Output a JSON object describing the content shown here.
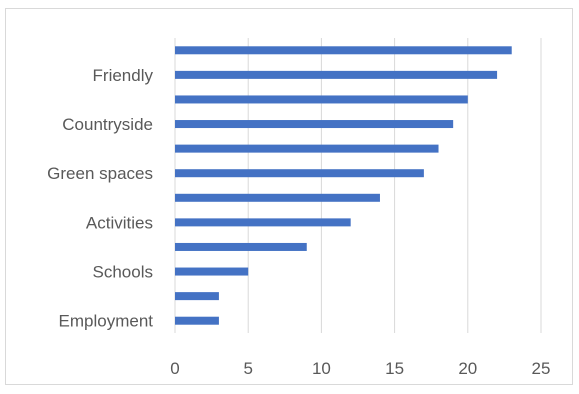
{
  "chart_data": {
    "type": "bar",
    "orientation": "horizontal",
    "categories": [
      "Employment",
      "",
      "Schools",
      "",
      "Activities",
      "",
      "Green spaces",
      "",
      "Countryside",
      "",
      "Friendly",
      ""
    ],
    "values": [
      3,
      3,
      5,
      9,
      12,
      14,
      17,
      18,
      19,
      20,
      22,
      23
    ],
    "x_ticks": [
      "0",
      "5",
      "10",
      "15",
      "20",
      "25"
    ],
    "xlim": [
      0,
      25
    ],
    "title": "",
    "xlabel": "",
    "ylabel": "",
    "grid": "vertical",
    "legend": "none",
    "bar_color": "#4472c4",
    "grid_color": "#d9d9d9",
    "text_color": "#595959"
  }
}
